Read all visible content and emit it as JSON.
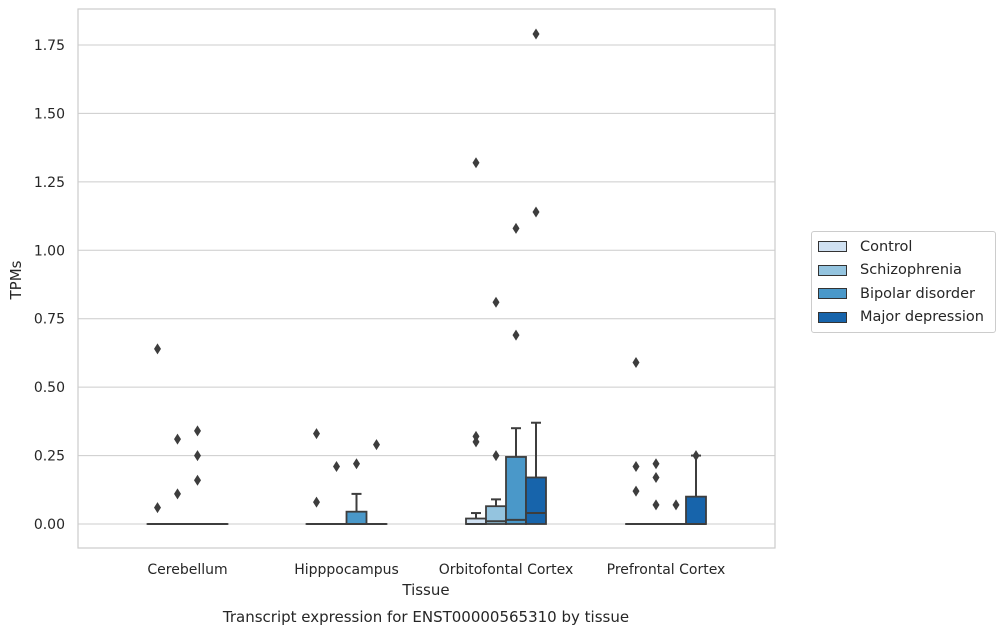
{
  "chart_data": {
    "type": "boxplot",
    "title": "Transcript expression for ENST00000565310 by tissue",
    "xlabel": "Tissue",
    "ylabel": "TPMs",
    "ylim": [
      -0.085,
      1.88
    ],
    "yticks": [
      0.0,
      0.25,
      0.5,
      0.75,
      1.0,
      1.25,
      1.5,
      1.75
    ],
    "ytick_labels": [
      "0.00",
      "0.25",
      "0.50",
      "0.75",
      "1.00",
      "1.25",
      "1.50",
      "1.75"
    ],
    "grid": "horizontal",
    "legend_position": "right",
    "categories": [
      "Cerebellum",
      "Hipppocampus",
      "Orbitofontal Cortex",
      "Prefrontal Cortex"
    ],
    "series": [
      {
        "name": "Control",
        "color": "#d0e1f2",
        "boxes": [
          {
            "q1": 0,
            "median": 0,
            "q3": 0,
            "whisker_low": 0,
            "whisker_high": 0,
            "outliers": [
              0.06,
              0.64
            ]
          },
          {
            "q1": 0,
            "median": 0,
            "q3": 0,
            "whisker_low": 0,
            "whisker_high": 0,
            "outliers": [
              0.08,
              0.33
            ]
          },
          {
            "q1": 0,
            "median": 0,
            "q3": 0.02,
            "whisker_low": 0,
            "whisker_high": 0.04,
            "outliers": [
              0.3,
              0.32,
              1.32
            ]
          },
          {
            "q1": 0,
            "median": 0,
            "q3": 0,
            "whisker_low": 0,
            "whisker_high": 0,
            "outliers": [
              0.12,
              0.21,
              0.59
            ]
          }
        ]
      },
      {
        "name": "Schizophrenia",
        "color": "#94c4df",
        "boxes": [
          {
            "q1": 0,
            "median": 0,
            "q3": 0,
            "whisker_low": 0,
            "whisker_high": 0,
            "outliers": [
              0.11,
              0.31
            ]
          },
          {
            "q1": 0,
            "median": 0,
            "q3": 0,
            "whisker_low": 0,
            "whisker_high": 0,
            "outliers": [
              0.21
            ]
          },
          {
            "q1": 0,
            "median": 0.01,
            "q3": 0.065,
            "whisker_low": 0,
            "whisker_high": 0.09,
            "outliers": [
              0.25,
              0.81
            ]
          },
          {
            "q1": 0,
            "median": 0,
            "q3": 0,
            "whisker_low": 0,
            "whisker_high": 0,
            "outliers": [
              0.07,
              0.17,
              0.22
            ]
          }
        ]
      },
      {
        "name": "Bipolar disorder",
        "color": "#4a98c9",
        "boxes": [
          {
            "q1": 0,
            "median": 0,
            "q3": 0,
            "whisker_low": 0,
            "whisker_high": 0,
            "outliers": [
              0.16,
              0.25,
              0.34
            ]
          },
          {
            "q1": 0,
            "median": 0,
            "q3": 0.045,
            "whisker_low": 0,
            "whisker_high": 0.11,
            "outliers": [
              0.22
            ]
          },
          {
            "q1": 0,
            "median": 0.015,
            "q3": 0.245,
            "whisker_low": 0,
            "whisker_high": 0.35,
            "outliers": [
              0.69,
              1.08
            ]
          },
          {
            "q1": 0,
            "median": 0,
            "q3": 0,
            "whisker_low": 0,
            "whisker_high": 0,
            "outliers": [
              0.07
            ]
          }
        ]
      },
      {
        "name": "Major depression",
        "color": "#1764ab",
        "boxes": [
          {
            "q1": 0,
            "median": 0,
            "q3": 0,
            "whisker_low": 0,
            "whisker_high": 0,
            "outliers": []
          },
          {
            "q1": 0,
            "median": 0,
            "q3": 0,
            "whisker_low": 0,
            "whisker_high": 0,
            "outliers": [
              0.29
            ]
          },
          {
            "q1": 0,
            "median": 0.04,
            "q3": 0.17,
            "whisker_low": 0,
            "whisker_high": 0.37,
            "outliers": [
              1.14,
              1.79
            ]
          },
          {
            "q1": 0,
            "median": 0,
            "q3": 0.1,
            "whisker_low": 0,
            "whisker_high": 0.25,
            "outliers": [
              0.25
            ]
          }
        ]
      }
    ]
  }
}
